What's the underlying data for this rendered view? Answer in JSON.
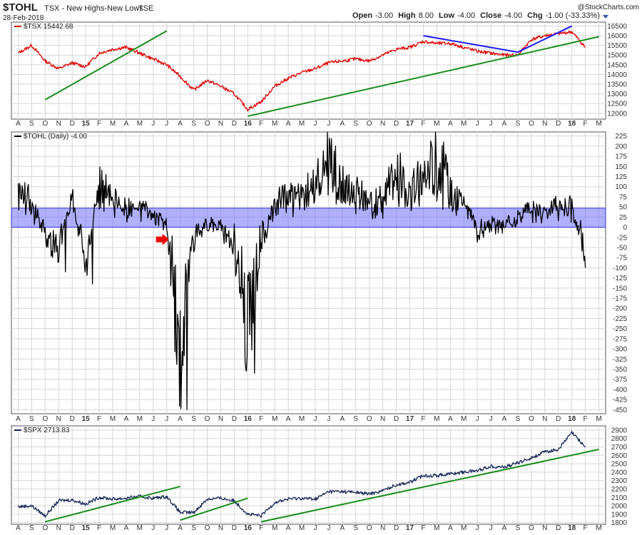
{
  "header": {
    "symbol": "$TOHL",
    "name": "TSX - New Highs-New Lows",
    "exchange": "TSE",
    "date": "28-Feb-2018",
    "credit": "@StockCharts.com",
    "ohlc": [
      {
        "label": "Open",
        "value": "-3.00"
      },
      {
        "label": "High",
        "value": "8.00"
      },
      {
        "label": "Low",
        "value": "-4.00"
      },
      {
        "label": "Close",
        "value": "-4.00"
      },
      {
        "label": "Chg",
        "value": "-1.00 (-33.33%)"
      }
    ]
  },
  "colors": {
    "tsx_line": "#e00000",
    "tohl_line": "#000000",
    "spx_line": "#1a2a5a",
    "trend_green": "#1a8c1a",
    "trend_blue": "#1a1aff",
    "band": "#6f6fff",
    "arrow": "#ee0000",
    "grid": "#d6d6d6"
  },
  "x_axis": {
    "months": [
      "A",
      "S",
      "O",
      "N",
      "D",
      "15",
      "F",
      "M",
      "A",
      "M",
      "J",
      "J",
      "A",
      "S",
      "O",
      "N",
      "D",
      "16",
      "F",
      "M",
      "A",
      "M",
      "J",
      "J",
      "A",
      "S",
      "O",
      "N",
      "D",
      "17",
      "F",
      "M",
      "A",
      "M",
      "J",
      "J",
      "A",
      "S",
      "O",
      "N",
      "D",
      "18",
      "F",
      "M"
    ],
    "year_labels": [
      "15",
      "16",
      "17",
      "18"
    ],
    "start": "2014-08",
    "end": "2018-03"
  },
  "chart_data": [
    {
      "type": "line",
      "panel": "top",
      "legend": "$TSX 15442.68",
      "y_ticks": [
        12000,
        12500,
        13000,
        13500,
        14000,
        14500,
        15000,
        15500,
        16000,
        16500
      ],
      "ylim": [
        11700,
        16700
      ],
      "x": [
        "2014-08",
        "2014-09",
        "2014-10",
        "2014-11",
        "2014-12",
        "2015-01",
        "2015-02",
        "2015-03",
        "2015-04",
        "2015-05",
        "2015-06",
        "2015-07",
        "2015-08",
        "2015-09",
        "2015-10",
        "2015-11",
        "2015-12",
        "2016-01",
        "2016-02",
        "2016-03",
        "2016-04",
        "2016-05",
        "2016-06",
        "2016-07",
        "2016-08",
        "2016-09",
        "2016-10",
        "2016-11",
        "2016-12",
        "2017-01",
        "2017-02",
        "2017-03",
        "2017-04",
        "2017-05",
        "2017-06",
        "2017-07",
        "2017-08",
        "2017-09",
        "2017-10",
        "2017-11",
        "2017-12",
        "2018-01",
        "2018-02"
      ],
      "values": [
        15100,
        15500,
        14700,
        14300,
        14600,
        14400,
        15100,
        15300,
        15400,
        15100,
        14800,
        14500,
        13900,
        13200,
        13700,
        13400,
        13000,
        12200,
        12600,
        13400,
        13800,
        14100,
        14300,
        14600,
        14700,
        14800,
        14700,
        15000,
        15300,
        15400,
        15700,
        15600,
        15600,
        15400,
        15200,
        15100,
        15000,
        15000,
        15800,
        16000,
        16100,
        16200,
        15400
      ],
      "trendlines": [
        {
          "color": "green",
          "from": [
            "2014-10",
            12700
          ],
          "to": [
            "2015-07",
            16250
          ]
        },
        {
          "color": "green",
          "from": [
            "2016-01",
            11850
          ],
          "to": [
            "2018-03",
            15950
          ]
        },
        {
          "color": "blue",
          "from": [
            "2017-02",
            16000
          ],
          "to": [
            "2017-09",
            15150
          ]
        },
        {
          "color": "blue",
          "from": [
            "2017-09",
            15150
          ],
          "to": [
            "2018-01",
            16500
          ]
        }
      ]
    },
    {
      "type": "line",
      "panel": "middle",
      "legend": "$TOHL (Daily) -4.00",
      "y_ticks": [
        225,
        200,
        175,
        150,
        125,
        100,
        75,
        50,
        25,
        0,
        -25,
        -50,
        -75,
        -100,
        -125,
        -150,
        -175,
        -200,
        -225,
        -250,
        -275,
        -300,
        -325,
        -350,
        -375,
        -400,
        -425,
        -450
      ],
      "ylim": [
        -460,
        235
      ],
      "band": [
        0,
        47
      ],
      "x": [
        "2014-08",
        "2014-09",
        "2014-10",
        "2014-11",
        "2014-12",
        "2015-01",
        "2015-02",
        "2015-03",
        "2015-04",
        "2015-05",
        "2015-06",
        "2015-07",
        "2015-08",
        "2015-09",
        "2015-10",
        "2015-11",
        "2015-12",
        "2016-01",
        "2016-02",
        "2016-03",
        "2016-04",
        "2016-05",
        "2016-06",
        "2016-07",
        "2016-08",
        "2016-09",
        "2016-10",
        "2016-11",
        "2016-12",
        "2017-01",
        "2017-02",
        "2017-03",
        "2017-04",
        "2017-05",
        "2017-06",
        "2017-07",
        "2017-08",
        "2017-09",
        "2017-10",
        "2017-11",
        "2017-12",
        "2018-01",
        "2018-02"
      ],
      "values": [
        110,
        60,
        -40,
        -110,
        80,
        -140,
        130,
        60,
        50,
        40,
        20,
        -10,
        -450,
        -60,
        -10,
        -20,
        -80,
        -360,
        -80,
        60,
        100,
        70,
        110,
        200,
        130,
        90,
        60,
        80,
        150,
        100,
        150,
        210,
        100,
        80,
        -40,
        -10,
        -20,
        20,
        40,
        40,
        50,
        40,
        -100
      ],
      "annotation": {
        "type": "arrow",
        "at": [
          "2015-07",
          -30
        ]
      }
    },
    {
      "type": "line",
      "panel": "bottom",
      "legend": "$SPX 2713.83",
      "y_ticks": [
        1800,
        1900,
        2000,
        2100,
        2200,
        2300,
        2400,
        2500,
        2600,
        2700,
        2800,
        2900
      ],
      "ylim": [
        1780,
        2950
      ],
      "x": [
        "2014-08",
        "2014-09",
        "2014-10",
        "2014-11",
        "2014-12",
        "2015-01",
        "2015-02",
        "2015-03",
        "2015-04",
        "2015-05",
        "2015-06",
        "2015-07",
        "2015-08",
        "2015-09",
        "2015-10",
        "2015-11",
        "2015-12",
        "2016-01",
        "2016-02",
        "2016-03",
        "2016-04",
        "2016-05",
        "2016-06",
        "2016-07",
        "2016-08",
        "2016-09",
        "2016-10",
        "2016-11",
        "2016-12",
        "2017-01",
        "2017-02",
        "2017-03",
        "2017-04",
        "2017-05",
        "2017-06",
        "2017-07",
        "2017-08",
        "2017-09",
        "2017-10",
        "2017-11",
        "2017-12",
        "2018-01",
        "2018-02"
      ],
      "values": [
        1990,
        2000,
        1880,
        2060,
        2070,
        2020,
        2100,
        2080,
        2090,
        2110,
        2090,
        2110,
        1920,
        1920,
        2080,
        2090,
        2060,
        1900,
        1880,
        2040,
        2080,
        2090,
        2080,
        2170,
        2170,
        2160,
        2140,
        2180,
        2250,
        2280,
        2360,
        2360,
        2380,
        2400,
        2420,
        2470,
        2460,
        2510,
        2570,
        2640,
        2670,
        2870,
        2700
      ],
      "trendlines": [
        {
          "color": "green",
          "from": [
            "2014-10",
            1810
          ],
          "to": [
            "2015-08",
            2230
          ]
        },
        {
          "color": "green",
          "from": [
            "2015-08",
            1830
          ],
          "to": [
            "2016-01",
            2090
          ]
        },
        {
          "color": "green",
          "from": [
            "2016-02",
            1810
          ],
          "to": [
            "2018-03",
            2670
          ]
        }
      ]
    }
  ]
}
